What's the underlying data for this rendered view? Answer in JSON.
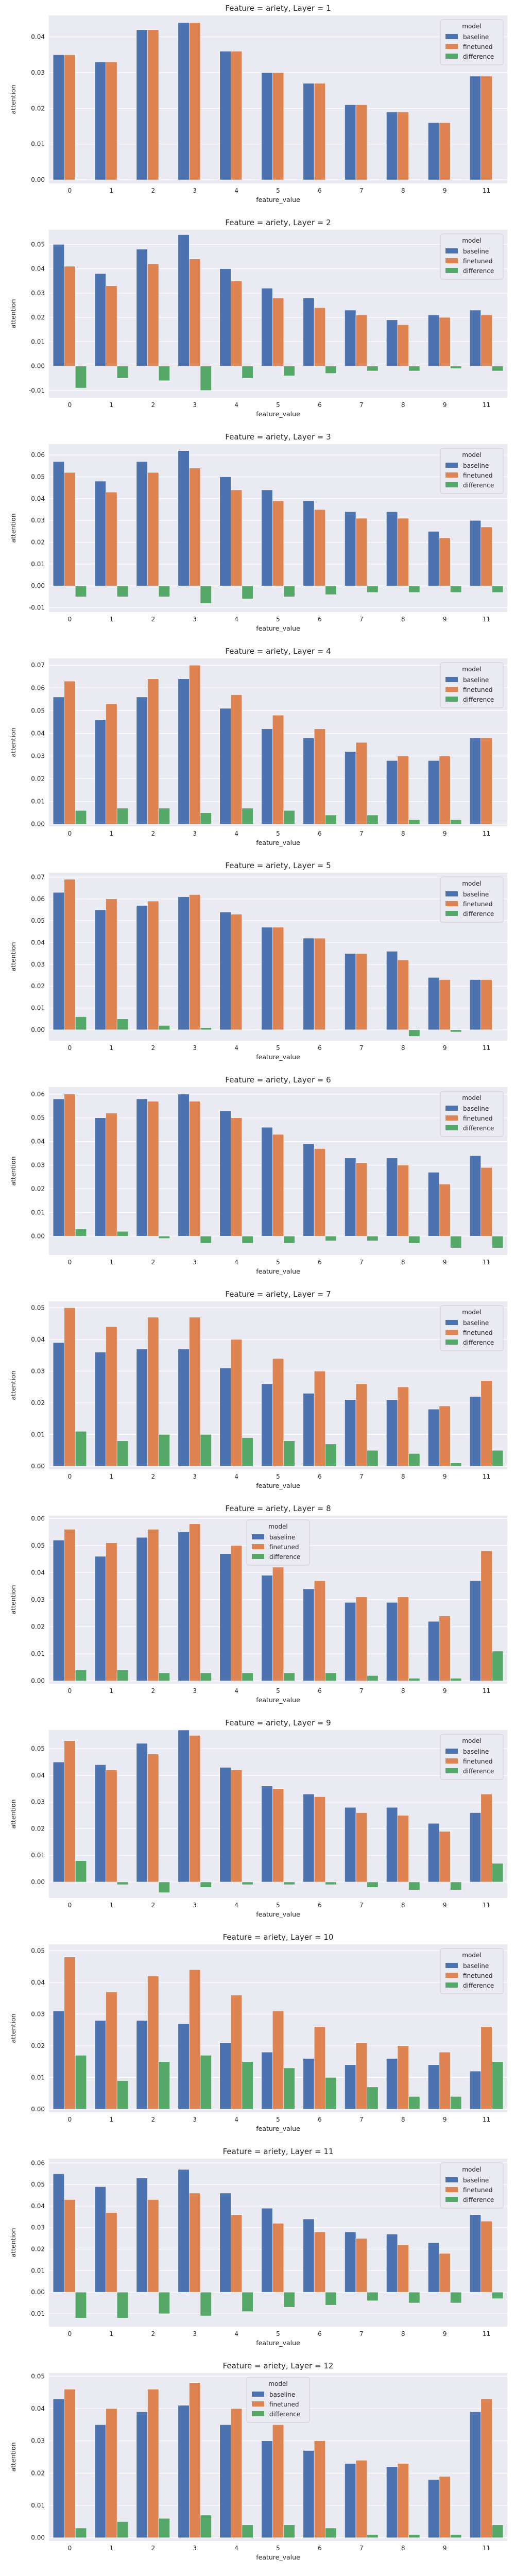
{
  "colors": {
    "baseline": "#4c72b0",
    "finetuned": "#dd8452",
    "difference": "#55a868",
    "plot_background": "#eaeaf2",
    "grid": "#ffffff",
    "text": "#262626"
  },
  "chart_data": [
    {
      "type": "bar",
      "title": "Feature = ariety, Layer = 1",
      "xlabel": "feature_value",
      "ylabel": "attention",
      "categories": [
        "0",
        "1",
        "2",
        "3",
        "4",
        "5",
        "6",
        "7",
        "8",
        "9",
        "11"
      ],
      "ylim": [
        -0.001,
        0.046
      ],
      "yticks": [
        "0.00",
        "0.01",
        "0.02",
        "0.03",
        "0.04"
      ],
      "legend": {
        "title": "model",
        "position": "top-right"
      },
      "series": [
        {
          "name": "baseline",
          "values": [
            0.035,
            0.033,
            0.042,
            0.044,
            0.036,
            0.03,
            0.027,
            0.021,
            0.019,
            0.016,
            0.029
          ]
        },
        {
          "name": "finetuned",
          "values": [
            0.035,
            0.033,
            0.042,
            0.044,
            0.036,
            0.03,
            0.027,
            0.021,
            0.019,
            0.016,
            0.029
          ]
        },
        {
          "name": "difference",
          "values": [
            0,
            0,
            0,
            0,
            0,
            0,
            0,
            0,
            0,
            0,
            0
          ]
        }
      ],
      "grid": true
    },
    {
      "type": "bar",
      "title": "Feature = ariety, Layer = 2",
      "xlabel": "feature_value",
      "ylabel": "attention",
      "categories": [
        "0",
        "1",
        "2",
        "3",
        "4",
        "5",
        "6",
        "7",
        "8",
        "9",
        "11"
      ],
      "ylim": [
        -0.013,
        0.056
      ],
      "yticks": [
        "-0.01",
        "0.00",
        "0.01",
        "0.02",
        "0.03",
        "0.04",
        "0.05"
      ],
      "legend": {
        "title": "model",
        "position": "top-right"
      },
      "series": [
        {
          "name": "baseline",
          "values": [
            0.05,
            0.038,
            0.048,
            0.054,
            0.04,
            0.032,
            0.028,
            0.023,
            0.019,
            0.021,
            0.023
          ]
        },
        {
          "name": "finetuned",
          "values": [
            0.041,
            0.033,
            0.042,
            0.044,
            0.035,
            0.028,
            0.024,
            0.021,
            0.017,
            0.02,
            0.021
          ]
        },
        {
          "name": "difference",
          "values": [
            -0.009,
            -0.005,
            -0.006,
            -0.01,
            -0.005,
            -0.004,
            -0.003,
            -0.002,
            -0.002,
            -0.001,
            -0.002
          ]
        }
      ],
      "grid": true
    },
    {
      "type": "bar",
      "title": "Feature = ariety, Layer = 3",
      "xlabel": "feature_value",
      "ylabel": "attention",
      "categories": [
        "0",
        "1",
        "2",
        "3",
        "4",
        "5",
        "6",
        "7",
        "8",
        "9",
        "11"
      ],
      "ylim": [
        -0.012,
        0.065
      ],
      "yticks": [
        "-0.01",
        "0.00",
        "0.01",
        "0.02",
        "0.03",
        "0.04",
        "0.05",
        "0.06"
      ],
      "legend": {
        "title": "model",
        "position": "top-right"
      },
      "series": [
        {
          "name": "baseline",
          "values": [
            0.057,
            0.048,
            0.057,
            0.062,
            0.05,
            0.044,
            0.039,
            0.034,
            0.034,
            0.025,
            0.03
          ]
        },
        {
          "name": "finetuned",
          "values": [
            0.052,
            0.043,
            0.052,
            0.054,
            0.044,
            0.039,
            0.035,
            0.031,
            0.031,
            0.022,
            0.027
          ]
        },
        {
          "name": "difference",
          "values": [
            -0.005,
            -0.005,
            -0.005,
            -0.008,
            -0.006,
            -0.005,
            -0.004,
            -0.003,
            -0.003,
            -0.003,
            -0.003
          ]
        }
      ],
      "grid": true
    },
    {
      "type": "bar",
      "title": "Feature = ariety, Layer = 4",
      "xlabel": "feature_value",
      "ylabel": "attention",
      "categories": [
        "0",
        "1",
        "2",
        "3",
        "4",
        "5",
        "6",
        "7",
        "8",
        "9",
        "11"
      ],
      "ylim": [
        -0.001,
        0.073
      ],
      "yticks": [
        "0.00",
        "0.01",
        "0.02",
        "0.03",
        "0.04",
        "0.05",
        "0.06",
        "0.07"
      ],
      "legend": {
        "title": "model",
        "position": "top-right"
      },
      "series": [
        {
          "name": "baseline",
          "values": [
            0.056,
            0.046,
            0.056,
            0.064,
            0.051,
            0.042,
            0.038,
            0.032,
            0.028,
            0.028,
            0.038
          ]
        },
        {
          "name": "finetuned",
          "values": [
            0.063,
            0.053,
            0.064,
            0.07,
            0.057,
            0.048,
            0.042,
            0.036,
            0.03,
            0.03,
            0.038
          ]
        },
        {
          "name": "difference",
          "values": [
            0.006,
            0.007,
            0.007,
            0.005,
            0.007,
            0.006,
            0.004,
            0.004,
            0.002,
            0.002,
            0.0
          ]
        }
      ],
      "grid": true
    },
    {
      "type": "bar",
      "title": "Feature = ariety, Layer = 5",
      "xlabel": "feature_value",
      "ylabel": "attention",
      "categories": [
        "0",
        "1",
        "2",
        "3",
        "4",
        "5",
        "6",
        "7",
        "8",
        "9",
        "11"
      ],
      "ylim": [
        -0.005,
        0.072
      ],
      "yticks": [
        "0.00",
        "0.01",
        "0.02",
        "0.03",
        "0.04",
        "0.05",
        "0.06",
        "0.07"
      ],
      "legend": {
        "title": "model",
        "position": "top-right"
      },
      "series": [
        {
          "name": "baseline",
          "values": [
            0.063,
            0.055,
            0.057,
            0.061,
            0.054,
            0.047,
            0.042,
            0.035,
            0.036,
            0.024,
            0.023
          ]
        },
        {
          "name": "finetuned",
          "values": [
            0.069,
            0.06,
            0.059,
            0.062,
            0.053,
            0.047,
            0.042,
            0.035,
            0.032,
            0.023,
            0.023
          ]
        },
        {
          "name": "difference",
          "values": [
            0.006,
            0.005,
            0.002,
            0.001,
            0.0,
            0.0,
            0.0,
            0.0,
            -0.003,
            -0.001,
            0.0
          ]
        }
      ],
      "grid": true
    },
    {
      "type": "bar",
      "title": "Feature = ariety, Layer = 6",
      "xlabel": "feature_value",
      "ylabel": "attention",
      "categories": [
        "0",
        "1",
        "2",
        "3",
        "4",
        "5",
        "6",
        "7",
        "8",
        "9",
        "11"
      ],
      "ylim": [
        -0.008,
        0.063
      ],
      "yticks": [
        "0.00",
        "0.01",
        "0.02",
        "0.03",
        "0.04",
        "0.05",
        "0.06"
      ],
      "legend": {
        "title": "model",
        "position": "top-right"
      },
      "series": [
        {
          "name": "baseline",
          "values": [
            0.058,
            0.05,
            0.058,
            0.06,
            0.053,
            0.046,
            0.039,
            0.033,
            0.033,
            0.027,
            0.034
          ]
        },
        {
          "name": "finetuned",
          "values": [
            0.06,
            0.052,
            0.057,
            0.057,
            0.05,
            0.043,
            0.037,
            0.031,
            0.03,
            0.022,
            0.029
          ]
        },
        {
          "name": "difference",
          "values": [
            0.003,
            0.002,
            -0.001,
            -0.003,
            -0.003,
            -0.003,
            -0.002,
            -0.002,
            -0.003,
            -0.005,
            -0.005
          ]
        }
      ],
      "grid": true
    },
    {
      "type": "bar",
      "title": "Feature = ariety, Layer = 7",
      "xlabel": "feature_value",
      "ylabel": "attention",
      "categories": [
        "0",
        "1",
        "2",
        "3",
        "4",
        "5",
        "6",
        "7",
        "8",
        "9",
        "11"
      ],
      "ylim": [
        -0.001,
        0.052
      ],
      "yticks": [
        "0.00",
        "0.01",
        "0.02",
        "0.03",
        "0.04",
        "0.05"
      ],
      "legend": {
        "title": "model",
        "position": "top-right"
      },
      "series": [
        {
          "name": "baseline",
          "values": [
            0.039,
            0.036,
            0.037,
            0.037,
            0.031,
            0.026,
            0.023,
            0.021,
            0.021,
            0.018,
            0.022
          ]
        },
        {
          "name": "finetuned",
          "values": [
            0.05,
            0.044,
            0.047,
            0.047,
            0.04,
            0.034,
            0.03,
            0.026,
            0.025,
            0.019,
            0.027
          ]
        },
        {
          "name": "difference",
          "values": [
            0.011,
            0.008,
            0.01,
            0.01,
            0.009,
            0.008,
            0.007,
            0.005,
            0.004,
            0.001,
            0.005
          ]
        }
      ],
      "grid": true
    },
    {
      "type": "bar",
      "title": "Feature = ariety, Layer = 8",
      "xlabel": "feature_value",
      "ylabel": "attention",
      "categories": [
        "0",
        "1",
        "2",
        "3",
        "4",
        "5",
        "6",
        "7",
        "8",
        "9",
        "11"
      ],
      "ylim": [
        -0.001,
        0.061
      ],
      "yticks": [
        "0.00",
        "0.01",
        "0.02",
        "0.03",
        "0.04",
        "0.05",
        "0.06"
      ],
      "legend": {
        "title": "model",
        "position": "upper-center"
      },
      "series": [
        {
          "name": "baseline",
          "values": [
            0.052,
            0.046,
            0.053,
            0.055,
            0.047,
            0.039,
            0.034,
            0.029,
            0.029,
            0.022,
            0.037
          ]
        },
        {
          "name": "finetuned",
          "values": [
            0.056,
            0.051,
            0.056,
            0.058,
            0.05,
            0.042,
            0.037,
            0.031,
            0.031,
            0.024,
            0.048
          ]
        },
        {
          "name": "difference",
          "values": [
            0.004,
            0.004,
            0.003,
            0.003,
            0.003,
            0.003,
            0.003,
            0.002,
            0.001,
            0.001,
            0.011
          ]
        }
      ],
      "grid": true
    },
    {
      "type": "bar",
      "title": "Feature = ariety, Layer = 9",
      "xlabel": "feature_value",
      "ylabel": "attention",
      "categories": [
        "0",
        "1",
        "2",
        "3",
        "4",
        "5",
        "6",
        "7",
        "8",
        "9",
        "11"
      ],
      "ylim": [
        -0.006,
        0.057
      ],
      "yticks": [
        "0.00",
        "0.01",
        "0.02",
        "0.03",
        "0.04",
        "0.05"
      ],
      "legend": {
        "title": "model",
        "position": "top-right"
      },
      "series": [
        {
          "name": "baseline",
          "values": [
            0.045,
            0.044,
            0.052,
            0.057,
            0.043,
            0.036,
            0.033,
            0.028,
            0.028,
            0.022,
            0.026
          ]
        },
        {
          "name": "finetuned",
          "values": [
            0.053,
            0.042,
            0.048,
            0.055,
            0.042,
            0.035,
            0.032,
            0.026,
            0.025,
            0.019,
            0.033
          ]
        },
        {
          "name": "difference",
          "values": [
            0.008,
            -0.001,
            -0.004,
            -0.002,
            -0.001,
            -0.001,
            -0.001,
            -0.002,
            -0.003,
            -0.003,
            0.007
          ]
        }
      ],
      "grid": true
    },
    {
      "type": "bar",
      "title": "Feature = ariety, Layer = 10",
      "xlabel": "feature_value",
      "ylabel": "attention",
      "categories": [
        "0",
        "1",
        "2",
        "3",
        "4",
        "5",
        "6",
        "7",
        "8",
        "9",
        "11"
      ],
      "ylim": [
        -0.001,
        0.052
      ],
      "yticks": [
        "0.00",
        "0.01",
        "0.02",
        "0.03",
        "0.04",
        "0.05"
      ],
      "legend": {
        "title": "model",
        "position": "top-right"
      },
      "series": [
        {
          "name": "baseline",
          "values": [
            0.031,
            0.028,
            0.028,
            0.027,
            0.021,
            0.018,
            0.016,
            0.014,
            0.016,
            0.014,
            0.012
          ]
        },
        {
          "name": "finetuned",
          "values": [
            0.048,
            0.037,
            0.042,
            0.044,
            0.036,
            0.031,
            0.026,
            0.021,
            0.02,
            0.018,
            0.026
          ]
        },
        {
          "name": "difference",
          "values": [
            0.017,
            0.009,
            0.015,
            0.017,
            0.015,
            0.013,
            0.01,
            0.007,
            0.004,
            0.004,
            0.015
          ]
        }
      ],
      "grid": true
    },
    {
      "type": "bar",
      "title": "Feature = ariety, Layer = 11",
      "xlabel": "feature_value",
      "ylabel": "attention",
      "categories": [
        "0",
        "1",
        "2",
        "3",
        "4",
        "5",
        "6",
        "7",
        "8",
        "9",
        "11"
      ],
      "ylim": [
        -0.016,
        0.062
      ],
      "yticks": [
        "-0.01",
        "0.00",
        "0.01",
        "0.02",
        "0.03",
        "0.04",
        "0.05",
        "0.06"
      ],
      "legend": {
        "title": "model",
        "position": "top-right"
      },
      "series": [
        {
          "name": "baseline",
          "values": [
            0.055,
            0.049,
            0.053,
            0.057,
            0.046,
            0.039,
            0.034,
            0.028,
            0.027,
            0.023,
            0.036
          ]
        },
        {
          "name": "finetuned",
          "values": [
            0.043,
            0.037,
            0.043,
            0.046,
            0.036,
            0.032,
            0.028,
            0.025,
            0.022,
            0.018,
            0.033
          ]
        },
        {
          "name": "difference",
          "values": [
            -0.012,
            -0.012,
            -0.01,
            -0.011,
            -0.009,
            -0.007,
            -0.006,
            -0.004,
            -0.005,
            -0.005,
            -0.003
          ]
        }
      ],
      "grid": true
    },
    {
      "type": "bar",
      "title": "Feature = ariety, Layer = 12",
      "xlabel": "feature_value",
      "ylabel": "attention",
      "categories": [
        "0",
        "1",
        "2",
        "3",
        "4",
        "5",
        "6",
        "7",
        "8",
        "9",
        "11"
      ],
      "ylim": [
        -0.001,
        0.051
      ],
      "yticks": [
        "0.00",
        "0.01",
        "0.02",
        "0.03",
        "0.04",
        "0.05"
      ],
      "legend": {
        "title": "model",
        "position": "upper-center"
      },
      "series": [
        {
          "name": "baseline",
          "values": [
            0.043,
            0.035,
            0.039,
            0.041,
            0.035,
            0.03,
            0.027,
            0.023,
            0.022,
            0.018,
            0.039
          ]
        },
        {
          "name": "finetuned",
          "values": [
            0.046,
            0.04,
            0.046,
            0.048,
            0.04,
            0.035,
            0.03,
            0.024,
            0.023,
            0.019,
            0.043
          ]
        },
        {
          "name": "difference",
          "values": [
            0.003,
            0.005,
            0.006,
            0.007,
            0.004,
            0.004,
            0.003,
            0.001,
            0.001,
            0.001,
            0.004
          ]
        }
      ],
      "grid": true
    }
  ]
}
